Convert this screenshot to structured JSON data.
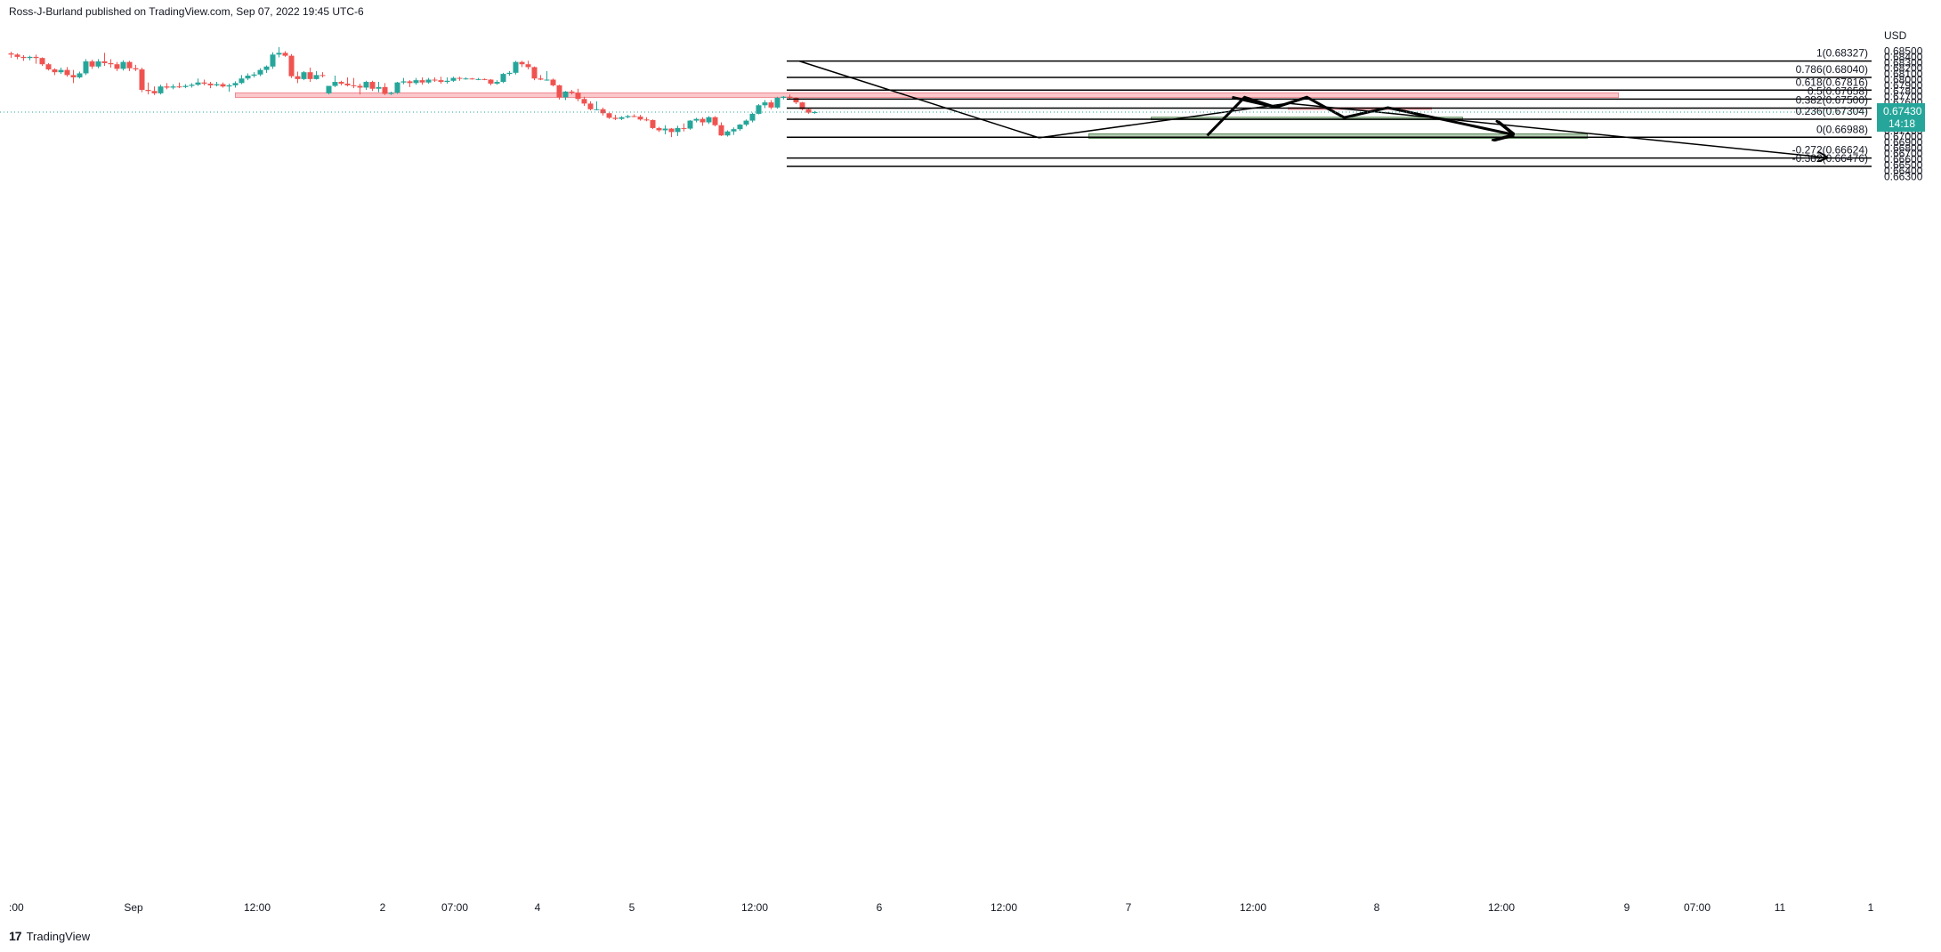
{
  "header": {
    "text": "Ross-J-Burland published on TradingView.com, Sep 07, 2022 19:45 UTC-6"
  },
  "footer": {
    "logo": "17",
    "brand": "TradingView"
  },
  "colors": {
    "up": "#26a69a",
    "down": "#ef5350",
    "resistance_zone": "#f7a1a8",
    "support_zone": "#7fa77c",
    "price_tag": "#26a69a",
    "drawing": "#000000"
  },
  "chart_data": {
    "type": "candlestick",
    "symbol_currency": "USD",
    "last_price": {
      "value": 0.6743,
      "label": "0.67430",
      "countdown": "14:18"
    },
    "x_tick_labels": [
      ":00",
      "Sep",
      "12:00",
      "2",
      "07:00",
      "4",
      "5",
      "12:00",
      "6",
      "12:00",
      "7",
      "12:00",
      "8",
      "12:00",
      "9",
      "07:00",
      "11",
      "1"
    ],
    "y_axis": {
      "min": 0.663,
      "max": 0.685,
      "ticks": [
        "0.68500",
        "0.68400",
        "0.68300",
        "0.68200",
        "0.68100",
        "0.68000",
        "0.67900",
        "0.67800",
        "0.67700",
        "0.67600",
        "0.67500",
        "0.67400",
        "0.67300",
        "0.67200",
        "0.67100",
        "0.67000",
        "0.66900",
        "0.66800",
        "0.66700",
        "0.66600",
        "0.66500",
        "0.66400",
        "0.66300"
      ]
    },
    "fibonacci_levels": [
      {
        "label": "1(0.68327)",
        "value": 0.68327
      },
      {
        "label": "0.786(0.68040)",
        "value": 0.6804
      },
      {
        "label": "0.618(0.67816)",
        "value": 0.67816
      },
      {
        "label": "0.5(0.67658)",
        "value": 0.67658
      },
      {
        "label": "0.382(0.67500)",
        "value": 0.675
      },
      {
        "label": "0.236(0.67304)",
        "value": 0.67304
      },
      {
        "label": "0(0.66988)",
        "value": 0.66988
      },
      {
        "label": "-0.272(0.66624)",
        "value": 0.66624
      },
      {
        "label": "-0.382(0.66476)",
        "value": 0.66476
      }
    ],
    "zones": [
      {
        "kind": "resistance",
        "top": 0.67768,
        "bottom": 0.67686,
        "x_start": 36.0,
        "x_end": 258.0
      },
      {
        "kind": "resistance",
        "top": 0.67508,
        "bottom": 0.67502,
        "x_start": 205.0,
        "x_end": 228.0
      },
      {
        "kind": "support",
        "top": 0.6734,
        "bottom": 0.67296,
        "x_start": 183.0,
        "x_end": 233.0
      },
      {
        "kind": "support",
        "top": 0.67048,
        "bottom": 0.66968,
        "x_start": 173.0,
        "x_end": 253.0
      }
    ],
    "drawn_lines": [
      {
        "points": [
          [
            126.5,
            0.68327
          ],
          [
            165.0,
            0.66978
          ]
        ],
        "width": 1.5
      },
      {
        "points": [
          [
            165.0,
            0.66978
          ],
          [
            205.0,
            0.67585
          ]
        ],
        "width": 1.5
      },
      {
        "points": [
          [
            205.0,
            0.67585
          ],
          [
            224.0,
            0.6738
          ],
          [
            291.5,
            0.6663
          ]
        ],
        "width": 1.5,
        "arrow": true
      },
      {
        "points": [
          [
            192.0,
            0.67018
          ],
          [
            198.0,
            0.67691
          ],
          [
            203.0,
            0.67515
          ],
          [
            208.0,
            0.67691
          ],
          [
            214.0,
            0.67335
          ],
          [
            221.0,
            0.67508
          ],
          [
            241.0,
            0.67038
          ]
        ],
        "width": 3.0,
        "arrow": true
      },
      {
        "points": [
          [
            196.0,
            0.67691
          ],
          [
            203.0,
            0.67515
          ],
          [
            208.0,
            0.67691
          ]
        ],
        "width": 3.0
      }
    ],
    "candles": [
      [
        0.0,
        0.6846,
        0.6849,
        0.6838,
        0.6844
      ],
      [
        1.0,
        0.6844,
        0.6846,
        0.6836,
        0.684
      ],
      [
        2.0,
        0.684,
        0.6843,
        0.6833,
        0.6838
      ],
      [
        3.0,
        0.6838,
        0.6842,
        0.6834,
        0.684
      ],
      [
        4.0,
        0.684,
        0.6844,
        0.6828,
        0.6838
      ],
      [
        5.0,
        0.6838,
        0.6839,
        0.6824,
        0.6827
      ],
      [
        6.0,
        0.6827,
        0.6829,
        0.6816,
        0.6818
      ],
      [
        7.0,
        0.6818,
        0.682,
        0.6808,
        0.6813
      ],
      [
        8.0,
        0.6813,
        0.6821,
        0.681,
        0.6817
      ],
      [
        9.0,
        0.6817,
        0.6822,
        0.6805,
        0.6808
      ],
      [
        10.0,
        0.6808,
        0.6817,
        0.6794,
        0.6804
      ],
      [
        11.0,
        0.6804,
        0.6814,
        0.6802,
        0.6811
      ],
      [
        12.0,
        0.6811,
        0.6836,
        0.6808,
        0.6832
      ],
      [
        13.0,
        0.6832,
        0.6835,
        0.6819,
        0.6823
      ],
      [
        14.0,
        0.6823,
        0.6836,
        0.682,
        0.6832
      ],
      [
        15.0,
        0.6832,
        0.6847,
        0.6824,
        0.6829
      ],
      [
        16.0,
        0.6829,
        0.6836,
        0.6821,
        0.6827
      ],
      [
        17.0,
        0.6827,
        0.6831,
        0.6815,
        0.6819
      ],
      [
        18.0,
        0.6819,
        0.6834,
        0.6816,
        0.6831
      ],
      [
        19.0,
        0.6831,
        0.6833,
        0.6815,
        0.682
      ],
      [
        20.0,
        0.682,
        0.6826,
        0.6815,
        0.6818
      ],
      [
        21.0,
        0.6818,
        0.6821,
        0.6778,
        0.6782
      ],
      [
        22.0,
        0.6782,
        0.6795,
        0.6774,
        0.678
      ],
      [
        23.0,
        0.678,
        0.6788,
        0.6773,
        0.6776
      ],
      [
        24.0,
        0.6776,
        0.6791,
        0.6774,
        0.6788
      ],
      [
        25.0,
        0.6788,
        0.6794,
        0.6783,
        0.6786
      ],
      [
        26.0,
        0.6786,
        0.6792,
        0.6783,
        0.6788
      ],
      [
        27.0,
        0.6788,
        0.6795,
        0.6785,
        0.6787
      ],
      [
        28.0,
        0.6787,
        0.6792,
        0.6785,
        0.6789
      ],
      [
        29.0,
        0.6789,
        0.6794,
        0.6786,
        0.6791
      ],
      [
        30.0,
        0.6791,
        0.6802,
        0.6789,
        0.6795
      ],
      [
        31.0,
        0.6795,
        0.68,
        0.679,
        0.6793
      ],
      [
        32.0,
        0.6793,
        0.6796,
        0.6785,
        0.679
      ],
      [
        33.0,
        0.679,
        0.6796,
        0.6788,
        0.6792
      ],
      [
        34.0,
        0.6792,
        0.6795,
        0.6786,
        0.6788
      ],
      [
        35.0,
        0.6788,
        0.6793,
        0.6779,
        0.679
      ],
      [
        36.0,
        0.679,
        0.6797,
        0.6786,
        0.6794
      ],
      [
        37.0,
        0.6794,
        0.6808,
        0.6792,
        0.6802
      ],
      [
        38.0,
        0.6802,
        0.6811,
        0.6799,
        0.6807
      ],
      [
        39.0,
        0.6807,
        0.6813,
        0.6804,
        0.6809
      ],
      [
        40.0,
        0.6809,
        0.682,
        0.6806,
        0.6817
      ],
      [
        41.0,
        0.6817,
        0.6825,
        0.6812,
        0.6823
      ],
      [
        42.0,
        0.6823,
        0.6848,
        0.6819,
        0.6844
      ],
      [
        43.0,
        0.6844,
        0.6857,
        0.6839,
        0.6847
      ],
      [
        44.0,
        0.6847,
        0.685,
        0.684,
        0.6842
      ],
      [
        45.0,
        0.6842,
        0.6845,
        0.6803,
        0.6806
      ],
      [
        46.0,
        0.6806,
        0.6814,
        0.6794,
        0.6801
      ],
      [
        47.0,
        0.6801,
        0.6815,
        0.6799,
        0.6813
      ],
      [
        48.0,
        0.6813,
        0.6821,
        0.6796,
        0.6801
      ],
      [
        49.0,
        0.6801,
        0.6815,
        0.68,
        0.6808
      ],
      [
        50.0,
        0.6808,
        0.6813,
        0.6804,
        0.6807
      ],
      [
        51.0,
        0.6776,
        0.6789,
        0.6774,
        0.6789
      ],
      [
        52.0,
        0.6789,
        0.6807,
        0.6787,
        0.6796
      ],
      [
        53.0,
        0.6796,
        0.6798,
        0.679,
        0.6793
      ],
      [
        54.0,
        0.6793,
        0.6804,
        0.6788,
        0.679
      ],
      [
        55.0,
        0.679,
        0.6803,
        0.6785,
        0.6789
      ],
      [
        56.0,
        0.6789,
        0.6793,
        0.6774,
        0.6786
      ],
      [
        57.0,
        0.6786,
        0.6798,
        0.6782,
        0.6796
      ],
      [
        58.0,
        0.6796,
        0.6798,
        0.678,
        0.6784
      ],
      [
        59.0,
        0.6784,
        0.6796,
        0.6778,
        0.6787
      ],
      [
        60.0,
        0.6787,
        0.6794,
        0.6773,
        0.6775
      ],
      [
        61.0,
        0.6775,
        0.6779,
        0.6773,
        0.6777
      ],
      [
        62.0,
        0.6777,
        0.6796,
        0.6775,
        0.6795
      ],
      [
        63.0,
        0.6795,
        0.6803,
        0.6792,
        0.6797
      ],
      [
        64.0,
        0.6797,
        0.6799,
        0.6787,
        0.6794
      ],
      [
        65.0,
        0.6794,
        0.6803,
        0.6791,
        0.6799
      ],
      [
        66.0,
        0.6799,
        0.6804,
        0.6791,
        0.6795
      ],
      [
        67.0,
        0.6795,
        0.6803,
        0.6793,
        0.68
      ],
      [
        68.0,
        0.68,
        0.6804,
        0.6796,
        0.6799
      ],
      [
        69.0,
        0.6799,
        0.6805,
        0.6793,
        0.6796
      ],
      [
        70.0,
        0.6796,
        0.6804,
        0.6793,
        0.6798
      ],
      [
        71.0,
        0.6798,
        0.6805,
        0.6796,
        0.6803
      ],
      [
        72.0,
        0.6803,
        0.6805,
        0.6798,
        0.6802
      ],
      [
        73.0,
        0.6802,
        0.6804,
        0.68,
        0.6802
      ],
      [
        74.0,
        0.6802,
        0.6803,
        0.68,
        0.6801
      ],
      [
        75.0,
        0.6801,
        0.6803,
        0.6799,
        0.6801
      ],
      [
        76.0,
        0.6801,
        0.6802,
        0.6799,
        0.68
      ],
      [
        77.0,
        0.68,
        0.6801,
        0.679,
        0.6793
      ],
      [
        78.0,
        0.6793,
        0.6799,
        0.6791,
        0.6796
      ],
      [
        79.0,
        0.6796,
        0.6812,
        0.6794,
        0.681
      ],
      [
        80.0,
        0.681,
        0.6815,
        0.6807,
        0.6812
      ],
      [
        81.0,
        0.6812,
        0.6833,
        0.6809,
        0.6831
      ],
      [
        82.0,
        0.6831,
        0.6833,
        0.6822,
        0.6827
      ],
      [
        83.0,
        0.6827,
        0.6833,
        0.6818,
        0.6822
      ],
      [
        84.0,
        0.6822,
        0.6823,
        0.6799,
        0.6802
      ],
      [
        85.0,
        0.6802,
        0.6808,
        0.6799,
        0.68
      ],
      [
        86.0,
        0.68,
        0.6815,
        0.6798,
        0.68
      ],
      [
        87.0,
        0.68,
        0.6802,
        0.6788,
        0.679
      ],
      [
        88.0,
        0.679,
        0.6791,
        0.6765,
        0.6769
      ],
      [
        89.0,
        0.6769,
        0.678,
        0.6764,
        0.6779
      ],
      [
        90.0,
        0.6779,
        0.6782,
        0.6774,
        0.6777
      ],
      [
        91.0,
        0.6777,
        0.6784,
        0.6762,
        0.6766
      ],
      [
        92.0,
        0.6766,
        0.677,
        0.6754,
        0.6758
      ],
      [
        93.0,
        0.6758,
        0.6762,
        0.6746,
        0.6748
      ],
      [
        94.0,
        0.6748,
        0.6762,
        0.6746,
        0.6748
      ],
      [
        95.0,
        0.6748,
        0.6751,
        0.6737,
        0.6741
      ],
      [
        96.0,
        0.6741,
        0.6742,
        0.6731,
        0.6733
      ],
      [
        97.0,
        0.6733,
        0.6738,
        0.6729,
        0.6731
      ],
      [
        98.0,
        0.6731,
        0.6736,
        0.6729,
        0.6734
      ],
      [
        99.0,
        0.6734,
        0.6738,
        0.6732,
        0.6736
      ],
      [
        100.0,
        0.6736,
        0.6739,
        0.6734,
        0.6735
      ],
      [
        101.0,
        0.6735,
        0.6738,
        0.6728,
        0.673
      ],
      [
        102.0,
        0.673,
        0.6734,
        0.6727,
        0.6729
      ],
      [
        103.0,
        0.6729,
        0.673,
        0.6713,
        0.6715
      ],
      [
        104.0,
        0.6715,
        0.6717,
        0.6708,
        0.6711
      ],
      [
        105.0,
        0.6711,
        0.672,
        0.6704,
        0.6714
      ],
      [
        106.0,
        0.6714,
        0.6715,
        0.6699,
        0.6708
      ],
      [
        107.0,
        0.6708,
        0.6719,
        0.6701,
        0.6715
      ],
      [
        108.0,
        0.6715,
        0.6723,
        0.6709,
        0.6714
      ],
      [
        109.0,
        0.6714,
        0.6729,
        0.6712,
        0.6728
      ],
      [
        110.0,
        0.6728,
        0.6733,
        0.6725,
        0.6731
      ],
      [
        111.0,
        0.6731,
        0.6734,
        0.6719,
        0.6725
      ],
      [
        112.0,
        0.6725,
        0.6736,
        0.6722,
        0.6734
      ],
      [
        113.0,
        0.6734,
        0.6736,
        0.6718,
        0.672
      ],
      [
        114.0,
        0.672,
        0.6725,
        0.6701,
        0.6702
      ],
      [
        115.0,
        0.6702,
        0.6711,
        0.67,
        0.6709
      ],
      [
        116.0,
        0.6709,
        0.6716,
        0.6703,
        0.6713
      ],
      [
        117.0,
        0.6713,
        0.6722,
        0.671,
        0.6721
      ],
      [
        118.0,
        0.6721,
        0.673,
        0.6718,
        0.6728
      ],
      [
        119.0,
        0.6728,
        0.6742,
        0.6725,
        0.674
      ],
      [
        120.0,
        0.674,
        0.6757,
        0.6739,
        0.6755
      ],
      [
        121.0,
        0.6755,
        0.6764,
        0.675,
        0.676
      ],
      [
        122.0,
        0.676,
        0.6764,
        0.6748,
        0.6751
      ],
      [
        123.0,
        0.6751,
        0.677,
        0.6749,
        0.6768
      ],
      [
        124.0,
        0.6768,
        0.6771,
        0.6765,
        0.677
      ],
      [
        125.0,
        0.677,
        0.6774,
        0.6766,
        0.6768
      ],
      [
        126.0,
        0.6768,
        0.6769,
        0.6757,
        0.676
      ],
      [
        127.0,
        0.676,
        0.6761,
        0.6746,
        0.6748
      ],
      [
        128.0,
        0.6748,
        0.6749,
        0.674,
        0.6742
      ],
      [
        129.0,
        0.6742,
        0.6745,
        0.674,
        0.6743
      ]
    ]
  }
}
